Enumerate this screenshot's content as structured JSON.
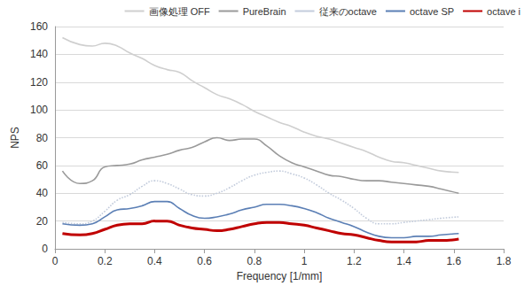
{
  "chart_data": {
    "type": "line",
    "x_label": "Frequency [1/mm]",
    "y_label": "NPS",
    "x": [
      0.03,
      0.1,
      0.15,
      0.2,
      0.25,
      0.3,
      0.35,
      0.4,
      0.45,
      0.5,
      0.55,
      0.6,
      0.65,
      0.7,
      0.75,
      0.8,
      0.85,
      0.9,
      0.95,
      1.0,
      1.05,
      1.1,
      1.15,
      1.2,
      1.25,
      1.3,
      1.35,
      1.4,
      1.45,
      1.5,
      1.55,
      1.62
    ],
    "series": [
      {
        "name": "画像処理 OFF",
        "color": "#cfcfcf",
        "line_style": "solid",
        "values": [
          152,
          147,
          146,
          148,
          146,
          141,
          137,
          132,
          129,
          127,
          121,
          116,
          111,
          108,
          104,
          99,
          95,
          91,
          88,
          84,
          81,
          79,
          76,
          73,
          70,
          66,
          63,
          62,
          60,
          58,
          56,
          55
        ]
      },
      {
        "name": "PureBrain",
        "color": "#9a9a9a",
        "line_style": "solid",
        "values": [
          56,
          47,
          49,
          59,
          60,
          61,
          64,
          66,
          68,
          71,
          73,
          77,
          80,
          78,
          79,
          79,
          74,
          67,
          62,
          59,
          56,
          53,
          52,
          50,
          49,
          49,
          48,
          47,
          46,
          45,
          43,
          40
        ]
      },
      {
        "name": "従来のoctave",
        "color": "#c3ccdc",
        "line_style": "dotted",
        "values": [
          19,
          18,
          20,
          27,
          35,
          39,
          45,
          49,
          47,
          43,
          39,
          38,
          40,
          44,
          49,
          53,
          55,
          56,
          54,
          51,
          46,
          40,
          35,
          29,
          22,
          18,
          18,
          19,
          20,
          21,
          22,
          23
        ]
      },
      {
        "name": "octave SP",
        "color": "#5b7fb5",
        "line_style": "solid",
        "values": [
          18,
          17,
          18,
          23,
          28,
          29,
          31,
          34,
          34,
          29,
          24,
          22,
          23,
          25,
          28,
          30,
          32,
          32,
          31,
          29,
          26,
          22,
          19,
          16,
          12,
          9,
          8,
          8,
          9,
          9,
          10,
          11
        ]
      },
      {
        "name": "octave i",
        "color": "#c00000",
        "line_style": "solid",
        "values": [
          11,
          10,
          11,
          14,
          17,
          18,
          18,
          20,
          20,
          17,
          15,
          14,
          13,
          14,
          16,
          18,
          19,
          19,
          18,
          17,
          15,
          13,
          11,
          10,
          8,
          6,
          5,
          5,
          5,
          6,
          6,
          7
        ]
      }
    ],
    "xlim": [
      0,
      1.8
    ],
    "xticks": [
      0,
      0.2,
      0.4,
      0.6,
      0.8,
      1,
      1.2,
      1.4,
      1.6,
      1.8
    ],
    "ylim": [
      0,
      160
    ],
    "yticks": [
      0,
      20,
      40,
      60,
      80,
      100,
      120,
      140,
      160
    ],
    "grid": true,
    "legend": "top-right"
  }
}
